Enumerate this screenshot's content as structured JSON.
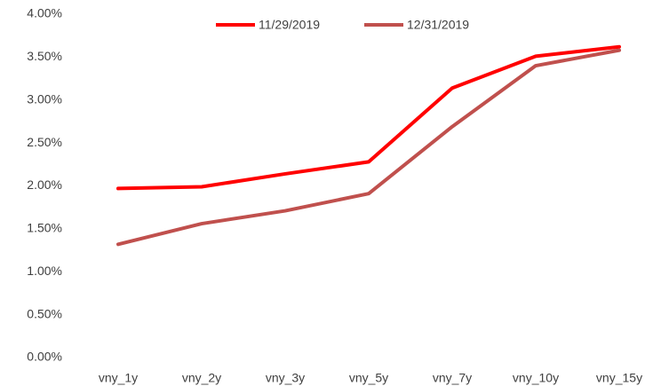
{
  "chart_data": {
    "type": "line",
    "categories": [
      "vny_1y",
      "vny_2y",
      "vny_3y",
      "vny_5y",
      "vny_7y",
      "vny_10y",
      "vny_15y"
    ],
    "series": [
      {
        "name": "11/29/2019",
        "color": "#ff0000",
        "values": [
          1.97,
          1.99,
          2.14,
          2.28,
          3.14,
          3.51,
          3.62
        ]
      },
      {
        "name": "12/31/2019",
        "color": "#c0504d",
        "values": [
          1.32,
          1.56,
          1.71,
          1.91,
          2.69,
          3.4,
          3.58
        ]
      }
    ],
    "ylim": [
      0,
      4
    ],
    "yticks": [
      {
        "value": 0,
        "label": "0.00%"
      },
      {
        "value": 0.5,
        "label": "0.50%"
      },
      {
        "value": 1,
        "label": "1.00%"
      },
      {
        "value": 1.5,
        "label": "1.50%"
      },
      {
        "value": 2,
        "label": "2.00%"
      },
      {
        "value": 2.5,
        "label": "2.50%"
      },
      {
        "value": 3,
        "label": "3.00%"
      },
      {
        "value": 3.5,
        "label": "3.50%"
      },
      {
        "value": 4,
        "label": "4.00%"
      }
    ],
    "legend": "top",
    "grid": false
  }
}
